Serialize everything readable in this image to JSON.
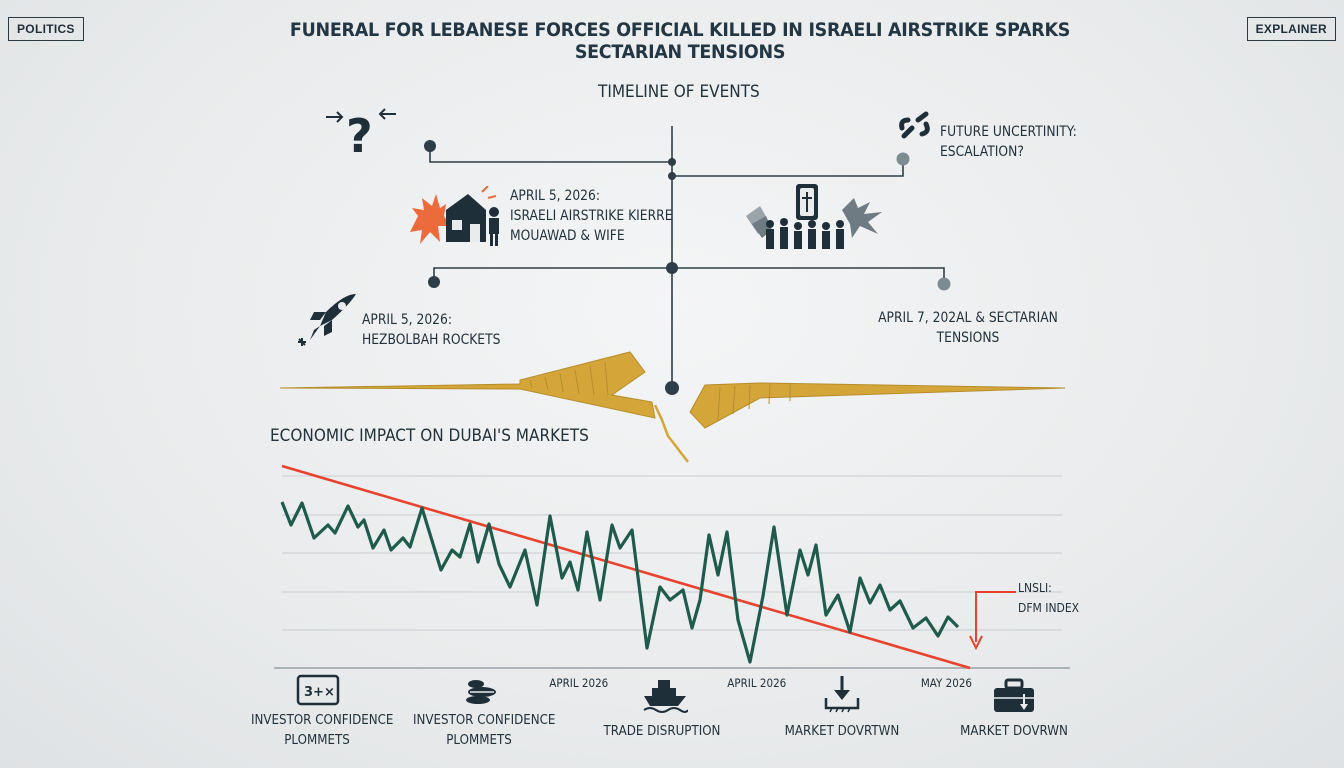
{
  "header": {
    "category_tag": "POLITICS",
    "headline": "FUNERAL FOR LEBANESE FORCES OFFICIAL KILLED IN ISRAELI AIRSTRIKE SPARKS SECTARIAN TENSIONS",
    "type_tag": "EXPLAINER"
  },
  "timeline": {
    "title": "TIMELINE OF EVENTS",
    "events": [
      {
        "name": "future",
        "line1": "FUTURE UNCERTINITY:",
        "line2": "ESCALATION?",
        "icon": "broken-link-icon"
      },
      {
        "name": "airstrike",
        "line1": "APRIL 5, 2026:",
        "line2": "ISRAELI AIRSTRIKE KIERRE",
        "line3": "MOUAWAD & WIFE",
        "icon": "explosion-house-icon"
      },
      {
        "name": "funeral",
        "icon": "coffin-crowd-icon"
      },
      {
        "name": "rockets",
        "line1": "APRIL 5, 2026:",
        "line2": "HEZBOLBAH ROCKETS",
        "icon": "rocket-icon"
      },
      {
        "name": "tensions",
        "line1": "APRIL 7, 202AL & SECTARIAN",
        "line2": "TENSIONS"
      }
    ],
    "question_icon": "question-arrows-icon"
  },
  "economy": {
    "title": "ECONOMIC IMPACT ON DUBAI'S MARKETS",
    "index_label_1": "LNSLI:",
    "index_label_2": "DFM INDEX",
    "x_labels": [
      "APRIL 2026",
      "APRIL 2026",
      "MAY 2026"
    ],
    "colors": {
      "line": "#1e5b4c",
      "trend": "#e8432e",
      "crack": "#d4a63a"
    }
  },
  "impacts": [
    {
      "label1": "INVESTOR CONFIDENCE",
      "label2": "PLOMMETS",
      "icon": "calculator-icon"
    },
    {
      "label1": "INVESTOR CONFIDENCE",
      "label2": "PLOMMETS",
      "icon": "coins-icon"
    },
    {
      "label1": "TRADE DISRUPTION",
      "label2": "",
      "icon": "ship-icon"
    },
    {
      "label1": "MARKET DOVRTWN",
      "label2": "",
      "icon": "down-arrow-icon"
    },
    {
      "label1": "MARKET DOVRWN",
      "label2": "",
      "icon": "briefcase-icon"
    }
  ]
}
